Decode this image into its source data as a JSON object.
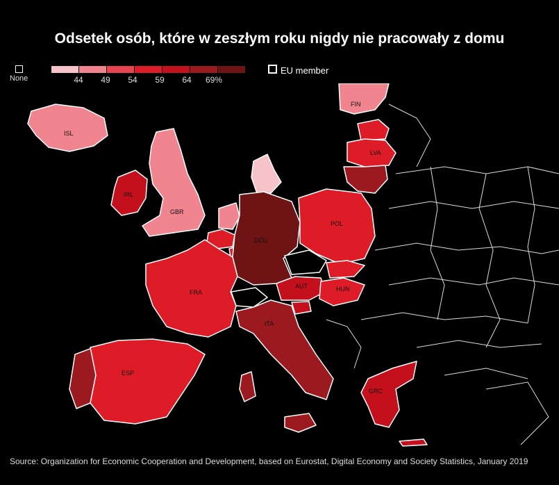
{
  "title": "Odsetek osób, które w zeszłym roku nigdy nie pracowały z domu",
  "legend": {
    "none_label": "None",
    "eu_label": "EU member",
    "ticks": [
      "44",
      "49",
      "54",
      "59",
      "64",
      "69%"
    ],
    "colors": [
      "#f5c3c8",
      "#f0858f",
      "#e8444f",
      "#dd1c28",
      "#c4101c",
      "#9a1a1f",
      "#6e1414"
    ]
  },
  "countries": [
    {
      "code": "ISL",
      "color": "#f0858f"
    },
    {
      "code": "IRL",
      "color": "#c4101c"
    },
    {
      "code": "GBR",
      "color": "#f0858f"
    },
    {
      "code": "FIN",
      "color": "#f0858f"
    },
    {
      "code": "LVA",
      "color": "#dd1c28"
    },
    {
      "code": "DEU",
      "color": "#6e1414"
    },
    {
      "code": "POL",
      "color": "#dd1c28"
    },
    {
      "code": "FRA",
      "color": "#dd1c28"
    },
    {
      "code": "AUT",
      "color": "#c4101c"
    },
    {
      "code": "HUN",
      "color": "#dd1c28"
    },
    {
      "code": "ITA",
      "color": "#9a1a1f"
    },
    {
      "code": "ESP",
      "color": "#dd1c28"
    },
    {
      "code": "GRC",
      "color": "#c4101c"
    }
  ],
  "other_colors": {
    "DNK": "#f5c3c8",
    "NLD": "#f0858f",
    "BEL": "#dd1c28",
    "LUX": "#dd1c28",
    "PRT": "#9a1a1f",
    "LTU": "#9a1a1f",
    "EST": "#dd1c28",
    "SVK": "#dd1c28",
    "SVN": "#c4101c",
    "CZE": "#000000",
    "CHE": "#000000"
  },
  "source": "Source: Organization for Economic Cooperation and Development, based on Eurostat, Digital Economy and Society Statistics, January 2019"
}
